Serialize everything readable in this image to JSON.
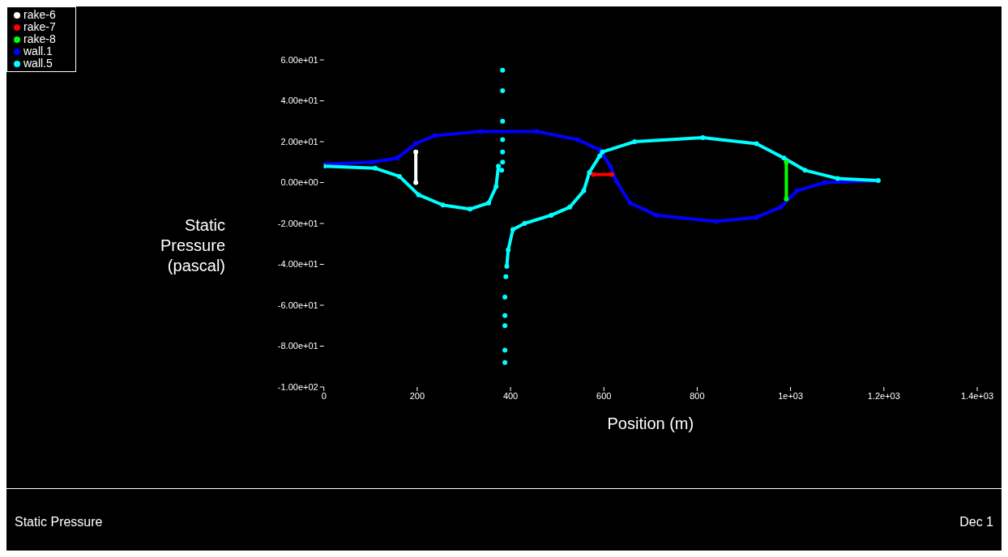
{
  "chart_data": {
    "type": "line",
    "xlabel": "Position (m)",
    "ylabel": "Static Pressure (pascal)",
    "xlim": [
      0,
      1400
    ],
    "ylim": [
      -100,
      60
    ],
    "xticks": [
      0,
      200,
      400,
      600,
      800,
      {
        "value": 1000,
        "label": "1e+03"
      },
      {
        "value": 1200,
        "label": "1.2e+03"
      },
      {
        "value": 1400,
        "label": "1.4e+03"
      }
    ],
    "yticks": [
      {
        "value": 60,
        "label": "6.00e+01"
      },
      {
        "value": 40,
        "label": "4.00e+01"
      },
      {
        "value": 20,
        "label": "2.00e+01"
      },
      {
        "value": 0,
        "label": "0.00e+00"
      },
      {
        "value": -20,
        "label": "-2.00e+01"
      },
      {
        "value": -40,
        "label": "-4.00e+01"
      },
      {
        "value": -60,
        "label": "-6.00e+01"
      },
      {
        "value": -80,
        "label": "-8.00e+01"
      },
      {
        "value": -100,
        "label": "-1.00e+02"
      }
    ],
    "grid": false,
    "legend": "top left",
    "marker": "circle",
    "line_style": "solid",
    "series": [
      {
        "name": "rake-6",
        "color": "#ffffff",
        "x": [
          197,
          197
        ],
        "values": [
          15,
          0
        ]
      },
      {
        "name": "rake-7",
        "color": "#ff0000",
        "x": [
          577,
          617
        ],
        "values": [
          4,
          4
        ]
      },
      {
        "name": "rake-8",
        "color": "#00ff00",
        "x": [
          991,
          991
        ],
        "values": [
          10,
          -8
        ]
      },
      {
        "name": "wall.1",
        "color": "#0000ff",
        "x": [
          0,
          104,
          157,
          197,
          238,
          336,
          457,
          544,
          591,
          614,
          626,
          656,
          713,
          840,
          927,
          979,
          1014,
          1073,
          1188
        ],
        "values": [
          9,
          10,
          12,
          19,
          23,
          25,
          25,
          21,
          16,
          8,
          1,
          -10,
          -16,
          -19,
          -17,
          -12,
          -4,
          0,
          1
        ]
      },
      {
        "name": "wall.5",
        "color": "#00ffff",
        "x": [
          0,
          110,
          162,
          203,
          255,
          313,
          353,
          369,
          374
        ],
        "values": [
          8,
          7,
          3,
          -6,
          -11,
          -13,
          -10,
          -2,
          8
        ]
      },
      {
        "color": "#00ffff",
        "x": [
          392,
          395,
          405,
          430,
          487,
          527,
          557,
          569,
          591,
          597,
          666,
          812,
          927,
          986,
          1031,
          1101,
          1188
        ],
        "values": [
          -41,
          -33,
          -23,
          -20,
          -16,
          -12,
          -4,
          5,
          13,
          15,
          20,
          22,
          19,
          12,
          6,
          2,
          1
        ]
      },
      {
        "type": "scatter",
        "color": "#00ffff",
        "x": [
          381,
          383,
          383,
          383,
          383,
          383,
          383,
          388,
          388,
          388,
          388,
          388,
          390
        ],
        "values": [
          6,
          10,
          15,
          21,
          30,
          45,
          55,
          -88,
          -82,
          -70,
          -65,
          -56,
          -46
        ]
      }
    ],
    "annotations": [
      "Static Pressure",
      "Dec 1"
    ]
  }
}
